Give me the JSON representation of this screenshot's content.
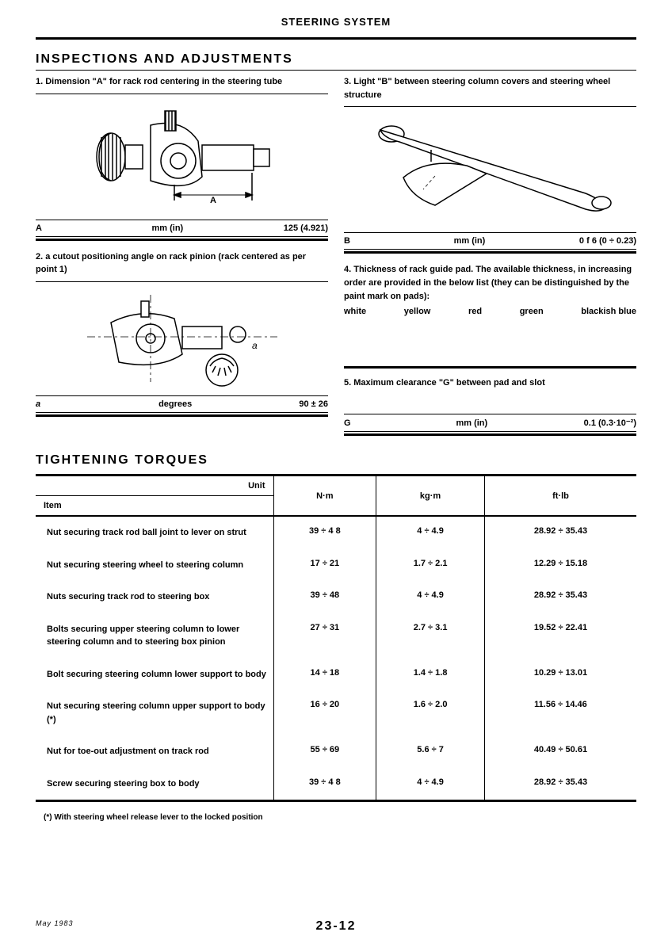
{
  "header": "STEERING SYSTEM",
  "section1_title": "INSPECTIONS AND ADJUSTMENTS",
  "left": {
    "item1_heading": "1.  Dimension \"A\" for rack rod centering in the steering tube",
    "item1_sym": "A",
    "item1_unit": "mm (in)",
    "item1_val": "125 (4.921)",
    "item2_heading": "2. a cutout positioning angle on rack pinion (rack centered as per point 1)",
    "item2_sym": "a",
    "item2_unit": "degrees",
    "item2_val": "90 ± 26"
  },
  "right": {
    "item3_heading": "3. Light \"B\" between steering column covers and steering wheel structure",
    "item3_sym": "B",
    "item3_unit": "mm (in)",
    "item3_val": "0 f 6 (0 ÷ 0.23)",
    "item4_heading": "4.  Thickness of rack guide pad. The available thickness, in increasing order are provided in the below list (they can be distinguished by the paint mark on pads):",
    "colors": [
      "white",
      "yellow",
      "red",
      "green",
      "blackish blue"
    ],
    "item5_heading": "5. Maximum clearance  \"G\"  between pad and slot",
    "item5_sym": "G",
    "item5_unit": "mm (in)",
    "item5_val": "0.1 (0.3·10⁻²)"
  },
  "section2_title": "TIGHTENING TORQUES",
  "torque": {
    "head_unit": "Unit",
    "head_item": "Item",
    "cols": [
      "N·m",
      "kg·m",
      "ft·lb"
    ],
    "rows": [
      {
        "item": "Nut securing track rod ball joint to lever on strut",
        "vals": [
          "39  ÷ 4 8",
          "4  ÷ 4.9",
          "28.92 ÷ 35.43"
        ]
      },
      {
        "item": "Nut securing steering wheel to steering column",
        "vals": [
          "17  ÷  21",
          "1.7  ÷  2.1",
          "12.29 ÷ 15.18"
        ]
      },
      {
        "item": "Nuts securing track rod to steering box",
        "vals": [
          "39  ÷  48",
          "4  ÷ 4.9",
          "28.92 ÷ 35.43"
        ]
      },
      {
        "item": "Bolts securing upper steering column to lower steering column and to steering box pinion",
        "vals": [
          "27  ÷  31",
          "2.7  ÷  3.1",
          "19.52 ÷ 22.41"
        ]
      },
      {
        "item": "Bolt securing steering column lower support to body",
        "vals": [
          "14  ÷  18",
          "1.4  ÷  1.8",
          "10.29 ÷ 13.01"
        ]
      },
      {
        "item": "Nut securing steering column upper support to body (*)",
        "vals": [
          "16  ÷  20",
          "1.6  ÷  2.0",
          "11.56 ÷ 14.46"
        ]
      },
      {
        "item": "Nut for toe-out adjustment on track rod",
        "vals": [
          "55  ÷  69",
          "5.6  ÷ 7",
          "40.49 ÷ 50.61"
        ]
      },
      {
        "item": "Screw securing steering box to body",
        "vals": [
          "39  ÷ 4 8",
          "4  ÷ 4.9",
          "28.92 ÷ 35.43"
        ]
      }
    ]
  },
  "footnote": "(*)  With steering wheel release lever to the locked position",
  "footer_date": "May 1983",
  "footer_page": "23-12"
}
